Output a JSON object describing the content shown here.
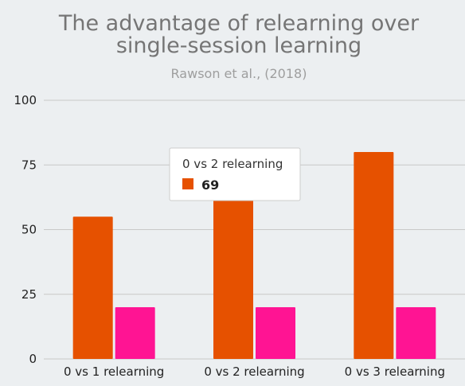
{
  "chart_data": {
    "type": "bar",
    "title_lines": [
      "The advantage of relearning over",
      "single-session learning"
    ],
    "subtitle": "Rawson et al., (2018)",
    "xlabel": "",
    "ylabel": "",
    "categories": [
      "0 vs 1 relearning",
      "0 vs 2 relearning",
      "0 vs 3 relearning"
    ],
    "series": [
      {
        "values": [
          55,
          69,
          80
        ],
        "color": "#e65100"
      },
      {
        "values": [
          20,
          20,
          20
        ],
        "color": "#ff1493"
      }
    ],
    "ylim": [
      0,
      100
    ],
    "yticks": [
      "0",
      "25",
      "50",
      "75",
      "100"
    ],
    "grid": true,
    "legend": "none"
  },
  "tooltip": {
    "category": "0 vs 2 relearning",
    "value": "69",
    "swatch_color": "#e65100"
  }
}
